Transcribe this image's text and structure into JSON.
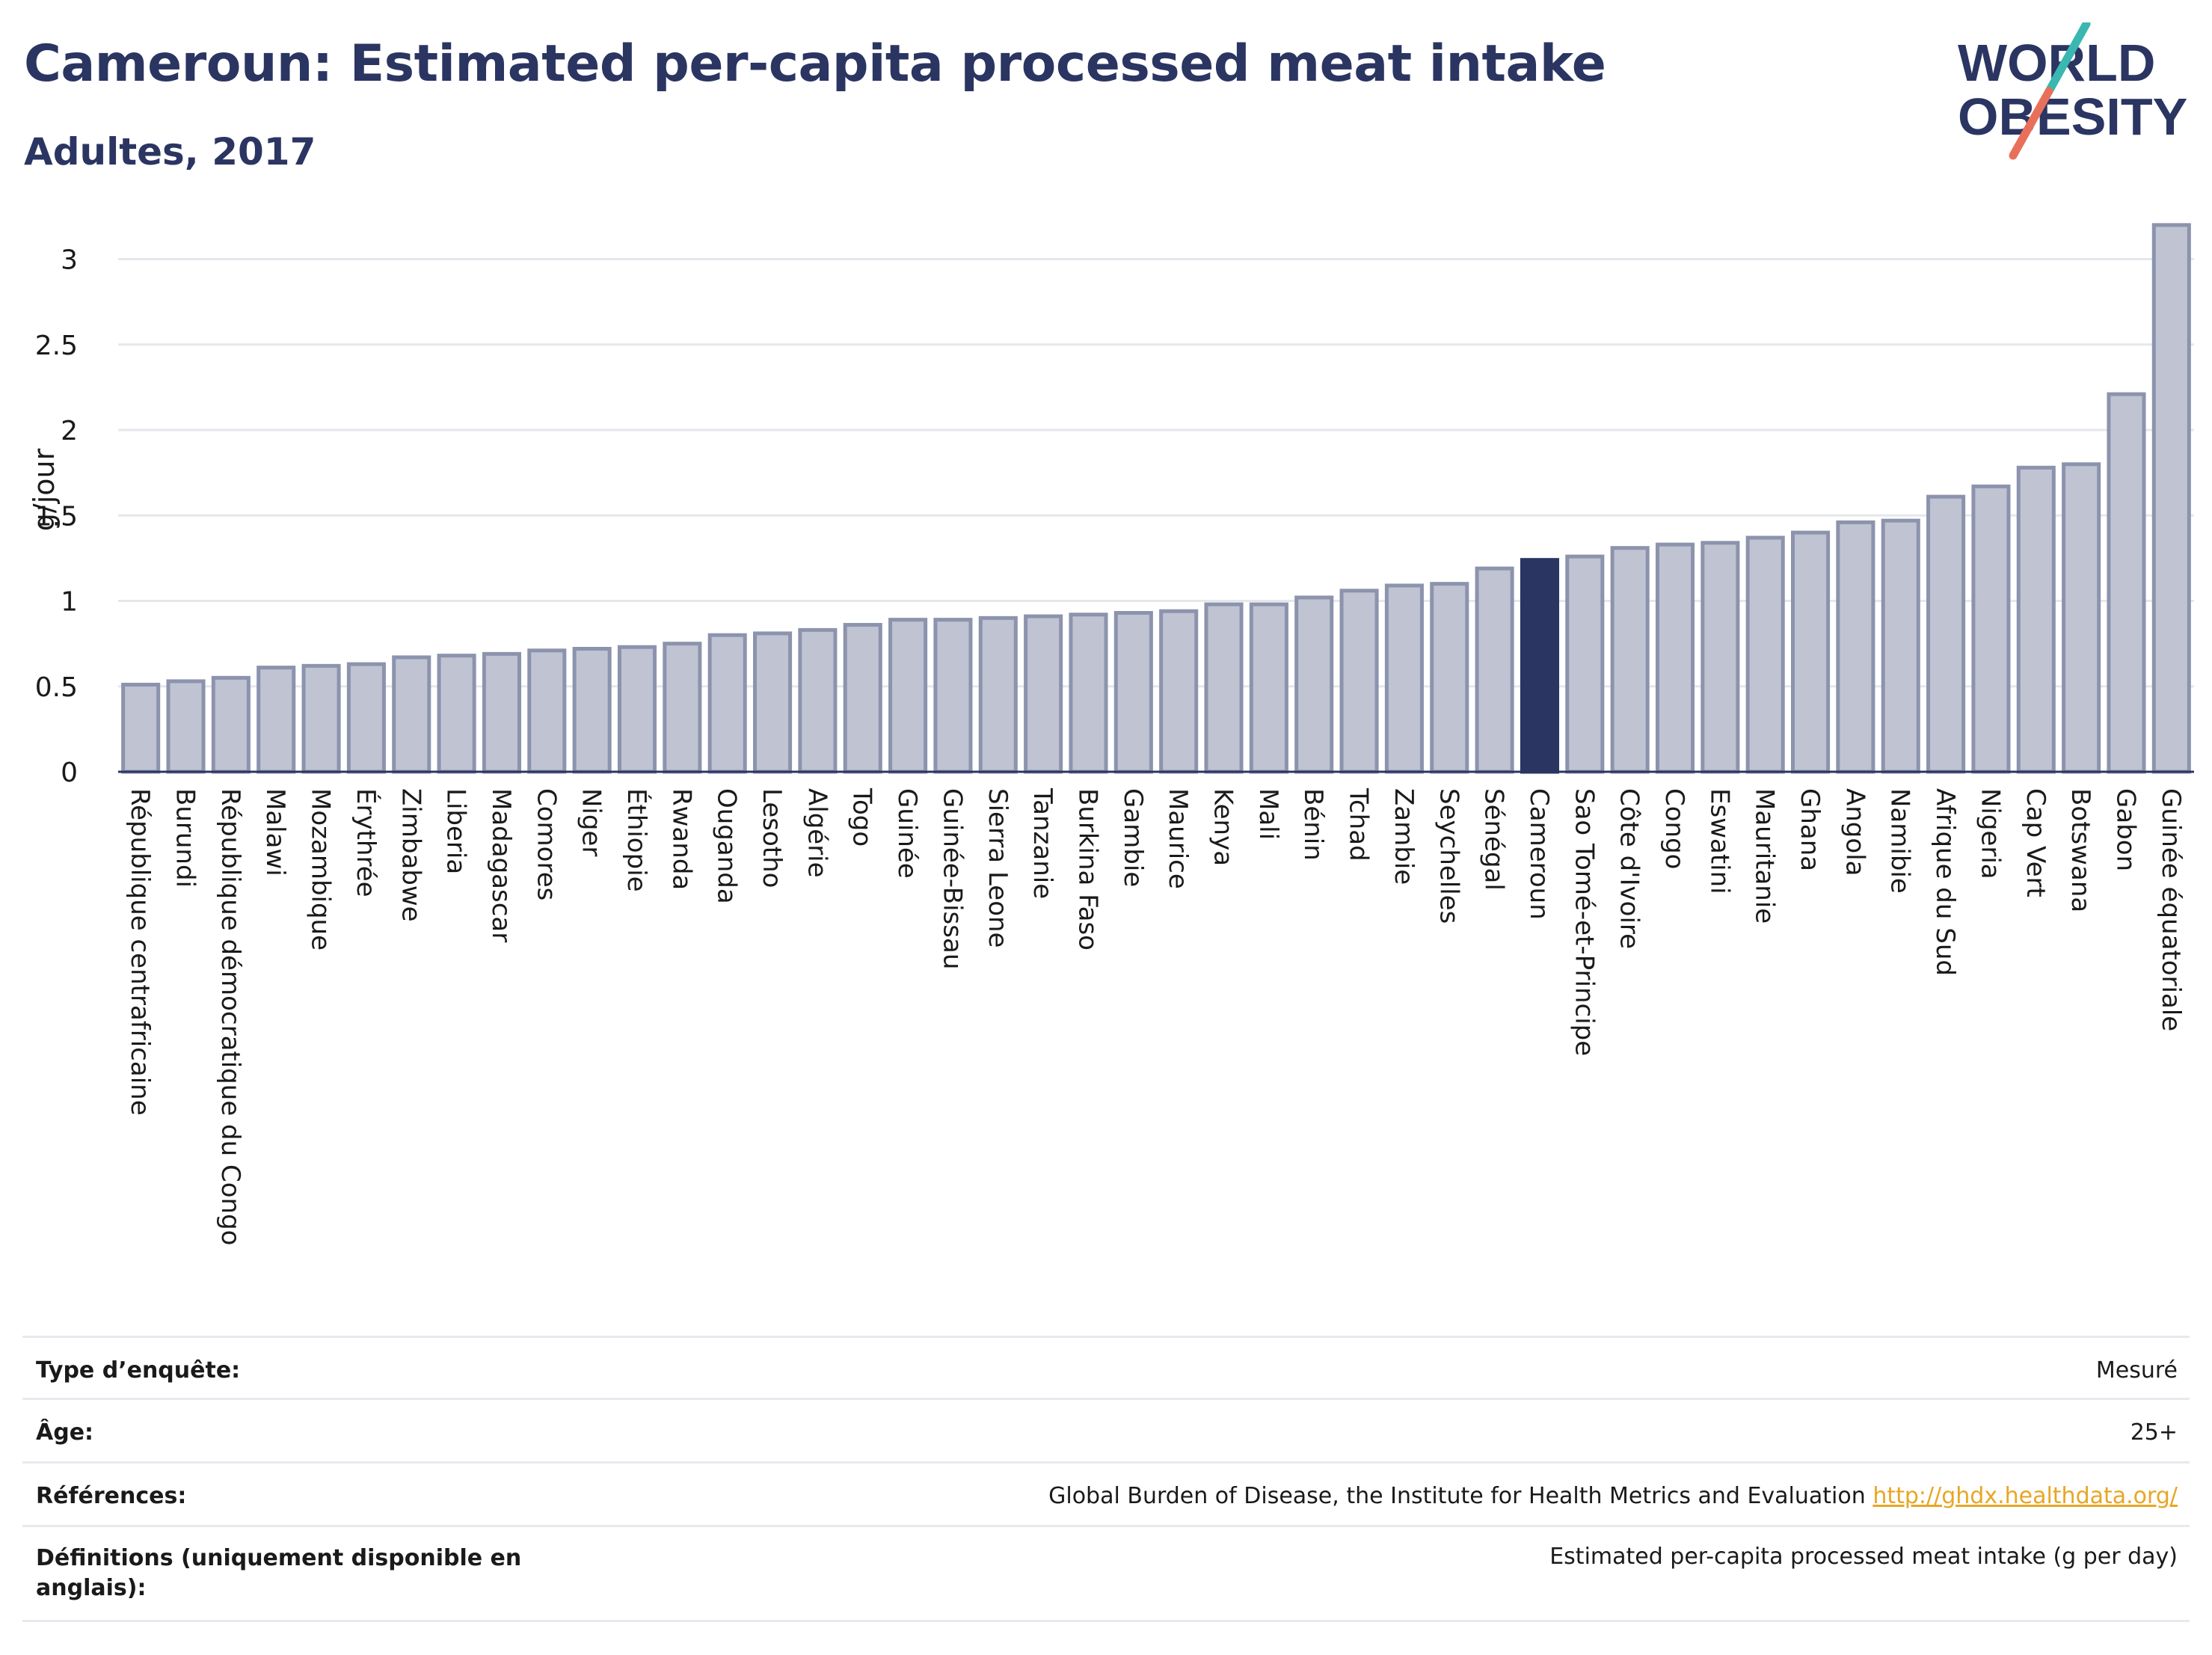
{
  "header": {
    "title": "Cameroun: Estimated per-capita processed meat intake",
    "subtitle": "Adultes, 2017"
  },
  "logo": {
    "line1": "WORLD",
    "line2": "OBESITY",
    "text_color": "#2b3562",
    "slash_top_color": "#3ab7b0",
    "slash_bottom_color": "#e8705a"
  },
  "colors": {
    "bar_fill": "#bfc3d2",
    "bar_stroke": "#8c93ad",
    "highlight": "#2b3562",
    "grid": "#e6e7ec",
    "axis": "#2b3562"
  },
  "chart_data": {
    "type": "bar",
    "title": "Cameroun: Estimated per-capita processed meat intake",
    "subtitle": "Adultes, 2017",
    "ylabel": "g/jour",
    "xlabel": "",
    "ylim": [
      0,
      3.3
    ],
    "yticks": [
      0,
      0.5,
      1,
      1.5,
      2,
      2.5,
      3
    ],
    "ytick_labels": [
      "0",
      "0.5",
      "1",
      "1.5",
      "2",
      "2.5",
      "3"
    ],
    "grid": true,
    "highlight": "Cameroun",
    "categories": [
      "République centrafricaine",
      "Burundi",
      "République démocratique du Congo",
      "Malawi",
      "Mozambique",
      "Érythrée",
      "Zimbabwe",
      "Liberia",
      "Madagascar",
      "Comores",
      "Niger",
      "Éthiopie",
      "Rwanda",
      "Ouganda",
      "Lesotho",
      "Algérie",
      "Togo",
      "Guinée",
      "Guinée-Bissau",
      "Sierra Leone",
      "Tanzanie",
      "Burkina Faso",
      "Gambie",
      "Maurice",
      "Kenya",
      "Mali",
      "Bénin",
      "Tchad",
      "Zambie",
      "Seychelles",
      "Sénégal",
      "Cameroun",
      "Sao Tomé-et-Principe",
      "Côte d'Ivoire",
      "Congo",
      "Eswatini",
      "Mauritanie",
      "Ghana",
      "Angola",
      "Namibie",
      "Afrique du Sud",
      "Nigeria",
      "Cap Vert",
      "Botswana",
      "Gabon",
      "Guinée équatoriale"
    ],
    "values": [
      0.51,
      0.53,
      0.55,
      0.61,
      0.62,
      0.63,
      0.67,
      0.68,
      0.69,
      0.71,
      0.72,
      0.73,
      0.75,
      0.8,
      0.81,
      0.83,
      0.86,
      0.89,
      0.89,
      0.9,
      0.91,
      0.92,
      0.93,
      0.94,
      0.98,
      0.98,
      1.02,
      1.06,
      1.09,
      1.1,
      1.19,
      1.24,
      1.26,
      1.31,
      1.33,
      1.34,
      1.37,
      1.4,
      1.46,
      1.47,
      1.61,
      1.67,
      1.78,
      1.8,
      2.21,
      3.2
    ]
  },
  "info": {
    "rows": [
      {
        "label": "Type d’enquête:",
        "value": "Mesuré"
      },
      {
        "label": "Âge:",
        "value": "25+"
      },
      {
        "label": "Références:",
        "value": "Global Burden of Disease, the Institute for Health Metrics and Evaluation",
        "link": "http://ghdx.healthdata.org/"
      },
      {
        "label": "Définitions (uniquement disponible en anglais):",
        "value": "Estimated per-capita processed meat intake (g per day)"
      }
    ]
  }
}
